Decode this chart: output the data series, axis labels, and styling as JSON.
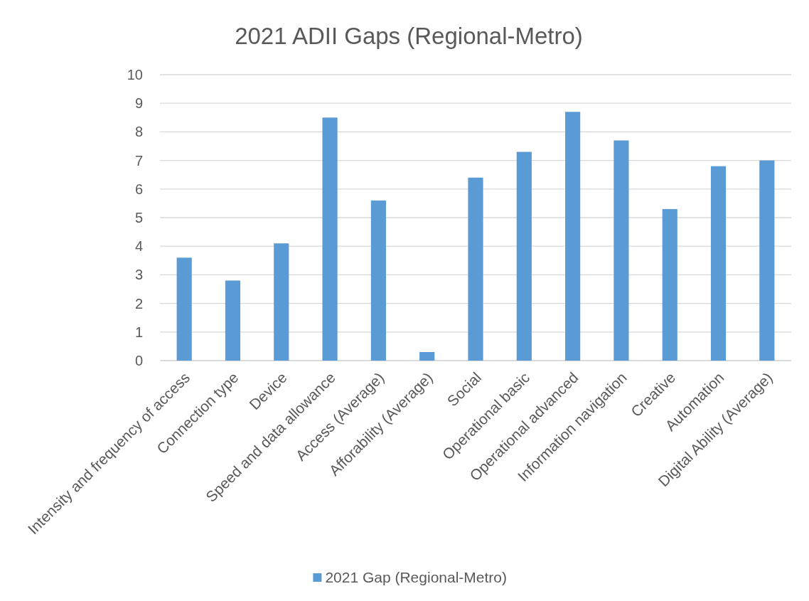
{
  "chart_data": {
    "type": "bar",
    "title": "2021 ADII Gaps (Regional-Metro)",
    "categories": [
      "Intensity and frequency of access",
      "Connection type",
      "Device",
      "Speed and data allowance",
      "Access (Average)",
      "Afforability (Average)",
      "Social",
      "Operational basic",
      "Operational advanced",
      "Information navigation",
      "Creative",
      "Automation",
      "Digital Ability (Average)"
    ],
    "series": [
      {
        "name": "2021 Gap (Regional-Metro)",
        "color": "#5b9bd5",
        "values": [
          3.6,
          2.8,
          4.1,
          8.5,
          5.6,
          0.3,
          6.4,
          7.3,
          8.7,
          7.7,
          5.3,
          6.8,
          7.0
        ]
      }
    ],
    "ylim": [
      0,
      10
    ],
    "yticks": [
      0,
      1,
      2,
      3,
      4,
      5,
      6,
      7,
      8,
      9,
      10
    ],
    "grid": "y",
    "legend": "bottom"
  }
}
